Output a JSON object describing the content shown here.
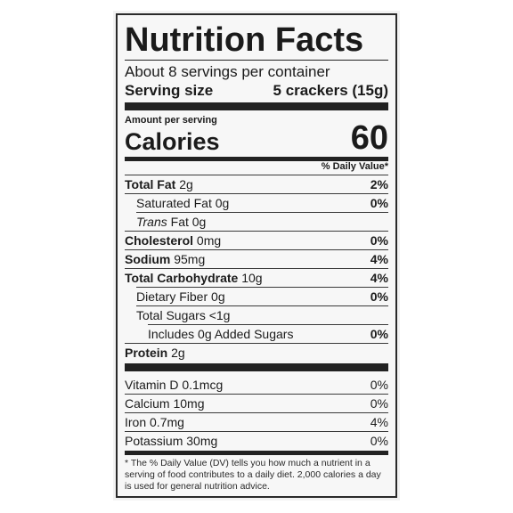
{
  "label": {
    "title": "Nutrition Facts",
    "servings_per_container": "About 8 servings per container",
    "serving_size_label": "Serving size",
    "serving_size_value": "5 crackers (15g)",
    "amount_per_serving": "Amount per serving",
    "calories_label": "Calories",
    "calories_value": "60",
    "daily_value_header": "% Daily Value*",
    "nutrients": [
      {
        "name": "Total Fat",
        "amount": "2g",
        "dv": "2%"
      },
      {
        "name": "Saturated Fat",
        "amount": "0g",
        "dv": "0%"
      },
      {
        "name": "Trans",
        "amount": "Fat 0g",
        "dv": ""
      },
      {
        "name": "Cholesterol",
        "amount": "0mg",
        "dv": "0%"
      },
      {
        "name": "Sodium",
        "amount": "95mg",
        "dv": "4%"
      },
      {
        "name": "Total Carbohydrate",
        "amount": "10g",
        "dv": "4%"
      },
      {
        "name": "Dietary Fiber",
        "amount": "0g",
        "dv": "0%"
      },
      {
        "name": "Total Sugars",
        "amount": "<1g",
        "dv": ""
      },
      {
        "name": "Includes 0g Added Sugars",
        "amount": "",
        "dv": "0%"
      },
      {
        "name": "Protein",
        "amount": "2g",
        "dv": ""
      }
    ],
    "vitamins": [
      {
        "name": "Vitamin D 0.1mcg",
        "dv": "0%"
      },
      {
        "name": "Calcium 10mg",
        "dv": "0%"
      },
      {
        "name": "Iron 0.7mg",
        "dv": "4%"
      },
      {
        "name": "Potassium 30mg",
        "dv": "0%"
      }
    ],
    "footnote": "* The % Daily Value (DV) tells you how much a nutrient in a serving of food contributes to a daily diet. 2,000 calories a day is used for general nutrition advice."
  }
}
